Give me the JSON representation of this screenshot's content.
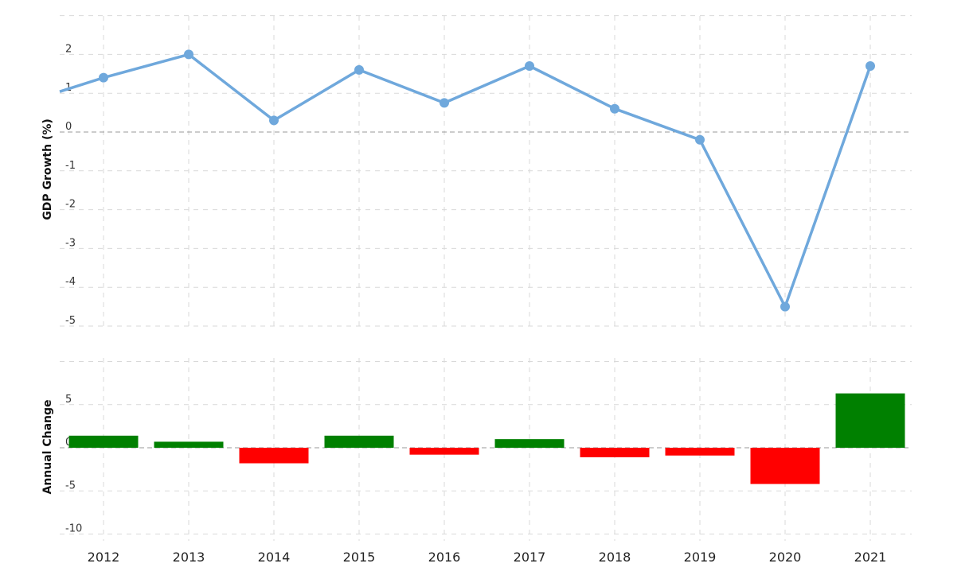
{
  "chart_data": [
    {
      "type": "line",
      "ylabel": "GDP Growth (%)",
      "x": [
        "2012",
        "2013",
        "2014",
        "2015",
        "2016",
        "2017",
        "2018",
        "2019",
        "2020",
        "2021"
      ],
      "values": [
        1.4,
        2.0,
        0.3,
        1.6,
        0.75,
        1.7,
        0.6,
        -0.2,
        -4.5,
        1.7
      ],
      "ylim": [
        -5,
        3
      ],
      "yticks": [
        "2",
        "1",
        "0",
        "-1",
        "-2",
        "-3",
        "-4",
        "-5"
      ],
      "color": "#6fa8dc",
      "grid": true
    },
    {
      "type": "bar",
      "ylabel": "Annual Change",
      "categories": [
        "2012",
        "2013",
        "2014",
        "2015",
        "2016",
        "2017",
        "2018",
        "2019",
        "2020",
        "2021"
      ],
      "values": [
        1.4,
        0.7,
        -1.8,
        1.4,
        -0.8,
        1.0,
        -1.1,
        -0.9,
        -4.2,
        6.3
      ],
      "ylim": [
        -10,
        10
      ],
      "yticks": [
        "5",
        "0",
        "-5",
        "-10"
      ],
      "positive_color": "#008000",
      "negative_color": "#ff0000",
      "grid": true
    }
  ]
}
